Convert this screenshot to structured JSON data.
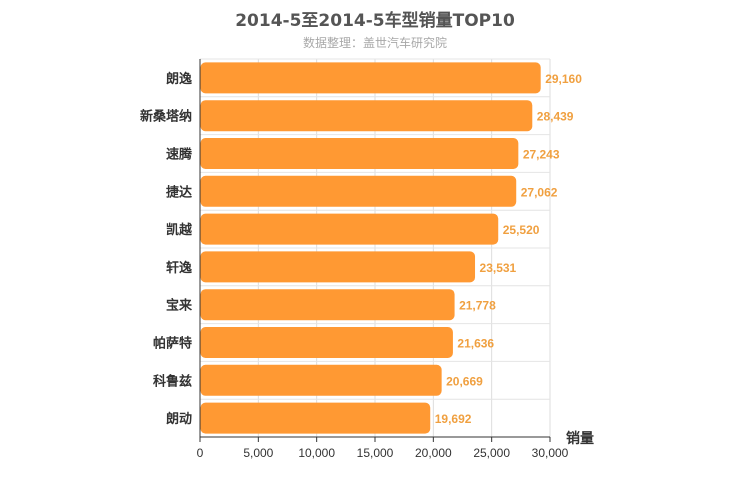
{
  "chart_data": {
    "type": "bar",
    "orientation": "horizontal",
    "title": "2014-5至2014-5车型销量TOP10",
    "subtitle": "数据整理：盖世汽车研究院",
    "xlabel": "销量",
    "ylabel": "",
    "xlim": [
      0,
      30000
    ],
    "ticks": [
      "0",
      "5,000",
      "10,000",
      "15,000",
      "20,000",
      "25,000",
      "30,000"
    ],
    "grid": true,
    "legend": "none",
    "bar_color": "#ff9933",
    "label_color": "#f0a040",
    "categories": [
      "朗逸",
      "新桑塔纳",
      "速腾",
      "捷达",
      "凯越",
      "轩逸",
      "宝来",
      "帕萨特",
      "科鲁兹",
      "朗动"
    ],
    "values": [
      29160,
      28439,
      27243,
      27062,
      25520,
      23531,
      21778,
      21636,
      20669,
      19692
    ],
    "value_labels": [
      "29,160",
      "28,439",
      "27,243",
      "27,062",
      "25,520",
      "23,531",
      "21,778",
      "21,636",
      "20,669",
      "19,692"
    ]
  }
}
